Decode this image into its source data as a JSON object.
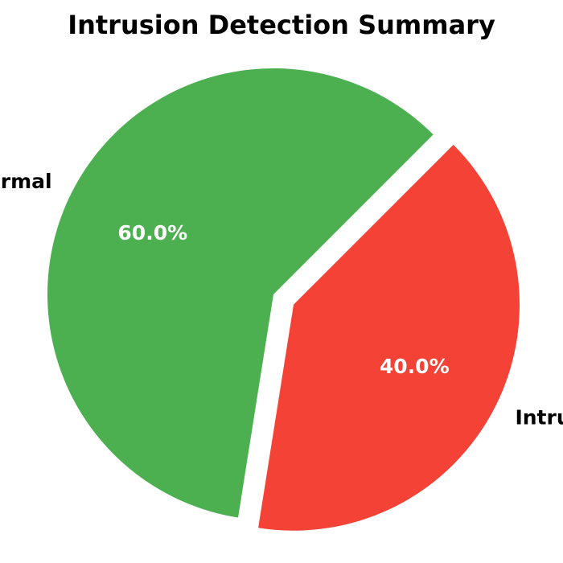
{
  "chart_data": {
    "type": "pie",
    "title": "Intrusion Detection Summary",
    "start_angle_deg": 45,
    "direction": "counterclockwise",
    "slices": [
      {
        "label": "Normal",
        "value": 60,
        "pct_label": "60.0%",
        "color": "#4caf50",
        "explode": 0
      },
      {
        "label": "Intrusion",
        "value": 40,
        "pct_label": "40.0%",
        "color": "#f44336",
        "explode": 0.1
      }
    ]
  }
}
